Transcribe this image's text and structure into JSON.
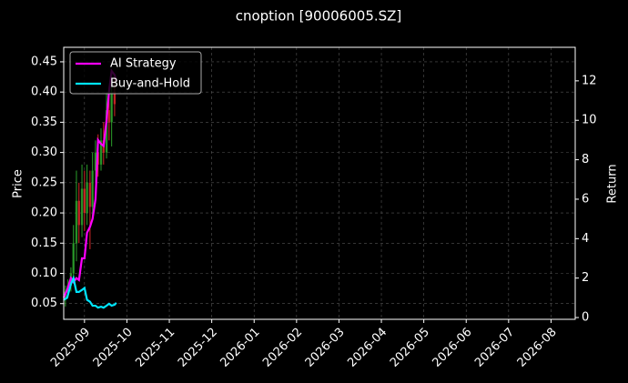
{
  "chart_data": {
    "type": "candlestick",
    "title": "cnoption [90006005.SZ]",
    "ylabel": "Price",
    "y2label": "Return",
    "grid": true,
    "legend": "upper left",
    "xlim": [
      -0.49,
      11.57
    ],
    "xticks": [
      {
        "value": 0,
        "label": "2025-09"
      },
      {
        "value": 1,
        "label": "2025-10"
      },
      {
        "value": 2,
        "label": "2025-11"
      },
      {
        "value": 3,
        "label": "2025-12"
      },
      {
        "value": 4,
        "label": "2026-01"
      },
      {
        "value": 5,
        "label": "2026-02"
      },
      {
        "value": 6,
        "label": "2026-03"
      },
      {
        "value": 7,
        "label": "2026-04"
      },
      {
        "value": 8,
        "label": "2026-05"
      },
      {
        "value": 9,
        "label": "2026-06"
      },
      {
        "value": 10,
        "label": "2026-07"
      },
      {
        "value": 11,
        "label": "2026-08"
      }
    ],
    "ylim": [
      0.024,
      0.474
    ],
    "yticks": [
      0.05,
      {
        "value": 0.1,
        "label": "0.10"
      },
      0.15,
      {
        "value": 0.2,
        "label": "0.20"
      },
      0.25,
      {
        "value": 0.3,
        "label": "0.30"
      },
      0.35,
      {
        "value": 0.4,
        "label": "0.40"
      },
      0.45
    ],
    "y2lim": [
      -0.09,
      13.7
    ],
    "y2ticks": [
      0,
      2,
      4,
      6,
      8,
      10,
      12
    ],
    "ohlc": {
      "up_color": "#2ca02c",
      "down_color": "#d62728",
      "x": [
        -0.45,
        -0.39,
        -0.32,
        -0.26,
        -0.19,
        -0.13,
        -0.06,
        0,
        0.06,
        0.13,
        0.19,
        0.26,
        0.32,
        0.39,
        0.45,
        0.52,
        0.58,
        0.64,
        0.71
      ],
      "open": [
        0.06,
        0.07,
        0.08,
        0.1,
        0.15,
        0.22,
        0.18,
        0.24,
        0.2,
        0.25,
        0.21,
        0.27,
        0.3,
        0.28,
        0.32,
        0.3,
        0.37,
        0.35,
        0.4
      ],
      "high": [
        0.08,
        0.09,
        0.11,
        0.18,
        0.27,
        0.25,
        0.28,
        0.27,
        0.28,
        0.27,
        0.3,
        0.32,
        0.33,
        0.34,
        0.35,
        0.4,
        0.41,
        0.42,
        0.43
      ],
      "low": [
        0.045,
        0.06,
        0.07,
        0.09,
        0.12,
        0.15,
        0.16,
        0.17,
        0.18,
        0.14,
        0.19,
        0.25,
        0.26,
        0.27,
        0.28,
        0.29,
        0.32,
        0.31,
        0.36
      ],
      "close": [
        0.07,
        0.08,
        0.1,
        0.15,
        0.22,
        0.18,
        0.24,
        0.2,
        0.25,
        0.21,
        0.27,
        0.3,
        0.28,
        0.32,
        0.3,
        0.37,
        0.35,
        0.4,
        0.38
      ]
    },
    "x": [
      -0.49,
      -0.41,
      -0.32,
      -0.26,
      -0.19,
      -0.13,
      -0.06,
      0,
      0.06,
      0.13,
      0.19,
      0.26,
      0.32,
      0.39,
      0.45,
      0.52,
      0.58,
      0.64,
      0.71,
      0.75
    ],
    "series": [
      {
        "name": "AI Strategy",
        "color": "#ff00ff",
        "axis": "y2",
        "values": [
          1.0,
          1.4,
          2.0,
          1.8,
          2.0,
          1.9,
          3.0,
          3.0,
          4.3,
          4.6,
          5.0,
          6.0,
          9.0,
          8.8,
          8.7,
          10.0,
          11.5,
          12.5,
          12.3,
          12.0
        ]
      },
      {
        "name": "Buy-and-Hold",
        "color": "#00e5ff",
        "axis": "y2",
        "values": [
          0.9,
          1.0,
          1.7,
          2.0,
          1.3,
          1.3,
          1.4,
          1.5,
          0.9,
          0.8,
          0.6,
          0.6,
          0.5,
          0.55,
          0.5,
          0.6,
          0.7,
          0.6,
          0.65,
          0.75
        ]
      }
    ]
  }
}
